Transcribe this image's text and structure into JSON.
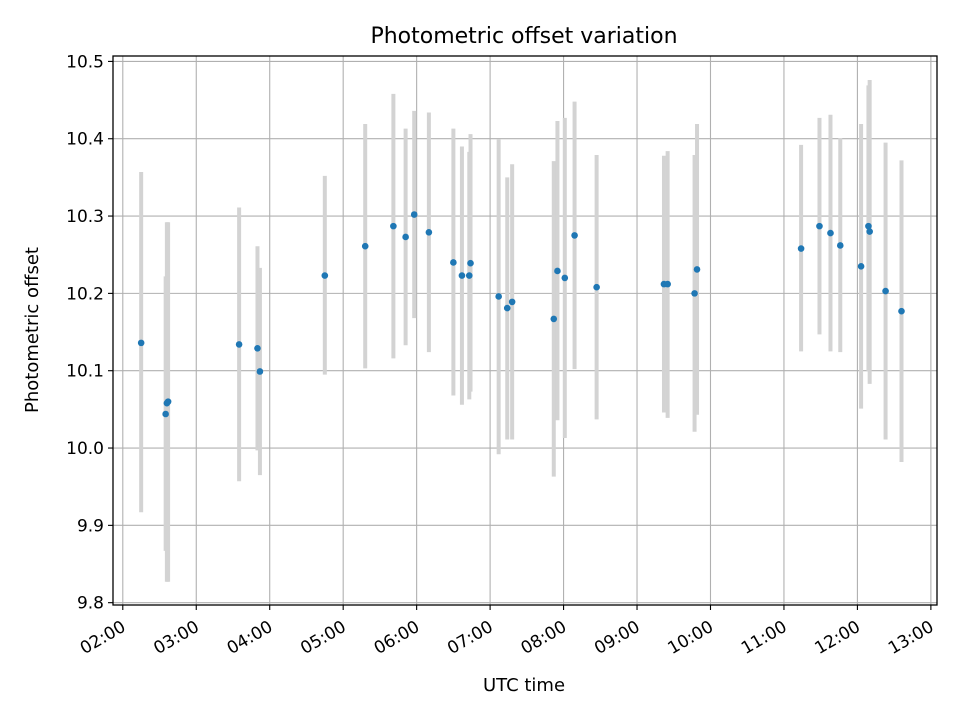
{
  "chart_data": {
    "type": "scatter",
    "title": "Photometric offset variation",
    "xlabel": "UTC time",
    "ylabel": "Photometric offset",
    "xlim": [
      "01:52",
      "13:05"
    ],
    "ylim": [
      9.797,
      10.507
    ],
    "grid": true,
    "x_ticks": [
      "02:00",
      "03:00",
      "04:00",
      "05:00",
      "06:00",
      "07:00",
      "08:00",
      "09:00",
      "10:00",
      "11:00",
      "12:00",
      "13:00"
    ],
    "y_ticks": [
      "9.8",
      "9.9",
      "10.0",
      "10.1",
      "10.2",
      "10.3",
      "10.4",
      "10.5"
    ],
    "point_color": "#1f77b4",
    "errorbar_color": "#d3d3d3",
    "points": [
      {
        "x": "02:15",
        "y": 10.136,
        "ylow": 9.917,
        "yhigh": 10.357
      },
      {
        "x": "02:35",
        "y": 10.044,
        "ylow": 9.867,
        "yhigh": 10.222
      },
      {
        "x": "02:36",
        "y": 10.058,
        "ylow": 9.827,
        "yhigh": 10.292
      },
      {
        "x": "02:37",
        "y": 10.06,
        "ylow": 9.827,
        "yhigh": 10.292
      },
      {
        "x": "03:35",
        "y": 10.134,
        "ylow": 9.957,
        "yhigh": 10.311
      },
      {
        "x": "03:50",
        "y": 10.129,
        "ylow": 9.997,
        "yhigh": 10.261
      },
      {
        "x": "03:52",
        "y": 10.099,
        "ylow": 9.965,
        "yhigh": 10.233
      },
      {
        "x": "04:45",
        "y": 10.223,
        "ylow": 10.095,
        "yhigh": 10.352
      },
      {
        "x": "05:18",
        "y": 10.261,
        "ylow": 10.103,
        "yhigh": 10.419
      },
      {
        "x": "05:41",
        "y": 10.287,
        "ylow": 10.116,
        "yhigh": 10.458
      },
      {
        "x": "05:51",
        "y": 10.273,
        "ylow": 10.133,
        "yhigh": 10.413
      },
      {
        "x": "05:58",
        "y": 10.302,
        "ylow": 10.168,
        "yhigh": 10.436
      },
      {
        "x": "06:10",
        "y": 10.279,
        "ylow": 10.124,
        "yhigh": 10.434
      },
      {
        "x": "06:30",
        "y": 10.24,
        "ylow": 10.068,
        "yhigh": 10.413
      },
      {
        "x": "06:37",
        "y": 10.223,
        "ylow": 10.056,
        "yhigh": 10.39
      },
      {
        "x": "06:43",
        "y": 10.223,
        "ylow": 10.063,
        "yhigh": 10.383
      },
      {
        "x": "06:44",
        "y": 10.239,
        "ylow": 10.073,
        "yhigh": 10.406
      },
      {
        "x": "07:07",
        "y": 10.196,
        "ylow": 9.992,
        "yhigh": 10.399
      },
      {
        "x": "07:14",
        "y": 10.181,
        "ylow": 10.011,
        "yhigh": 10.35
      },
      {
        "x": "07:18",
        "y": 10.189,
        "ylow": 10.011,
        "yhigh": 10.367
      },
      {
        "x": "07:52",
        "y": 10.167,
        "ylow": 9.963,
        "yhigh": 10.371
      },
      {
        "x": "07:55",
        "y": 10.229,
        "ylow": 10.036,
        "yhigh": 10.423
      },
      {
        "x": "08:01",
        "y": 10.22,
        "ylow": 10.013,
        "yhigh": 10.427
      },
      {
        "x": "08:09",
        "y": 10.275,
        "ylow": 10.102,
        "yhigh": 10.448
      },
      {
        "x": "08:27",
        "y": 10.208,
        "ylow": 10.037,
        "yhigh": 10.379
      },
      {
        "x": "09:22",
        "y": 10.212,
        "ylow": 10.046,
        "yhigh": 10.378
      },
      {
        "x": "09:25",
        "y": 10.212,
        "ylow": 10.039,
        "yhigh": 10.384
      },
      {
        "x": "09:47",
        "y": 10.2,
        "ylow": 10.021,
        "yhigh": 10.379
      },
      {
        "x": "09:49",
        "y": 10.231,
        "ylow": 10.043,
        "yhigh": 10.419
      },
      {
        "x": "11:14",
        "y": 10.258,
        "ylow": 10.125,
        "yhigh": 10.392
      },
      {
        "x": "11:29",
        "y": 10.287,
        "ylow": 10.147,
        "yhigh": 10.427
      },
      {
        "x": "11:38",
        "y": 10.278,
        "ylow": 10.125,
        "yhigh": 10.431
      },
      {
        "x": "11:46",
        "y": 10.262,
        "ylow": 10.124,
        "yhigh": 10.401
      },
      {
        "x": "12:03",
        "y": 10.235,
        "ylow": 10.051,
        "yhigh": 10.419
      },
      {
        "x": "12:09",
        "y": 10.287,
        "ylow": 10.099,
        "yhigh": 10.469
      },
      {
        "x": "12:10",
        "y": 10.28,
        "ylow": 10.083,
        "yhigh": 10.476
      },
      {
        "x": "12:23",
        "y": 10.203,
        "ylow": 10.011,
        "yhigh": 10.395
      },
      {
        "x": "12:36",
        "y": 10.177,
        "ylow": 9.982,
        "yhigh": 10.372
      }
    ]
  }
}
